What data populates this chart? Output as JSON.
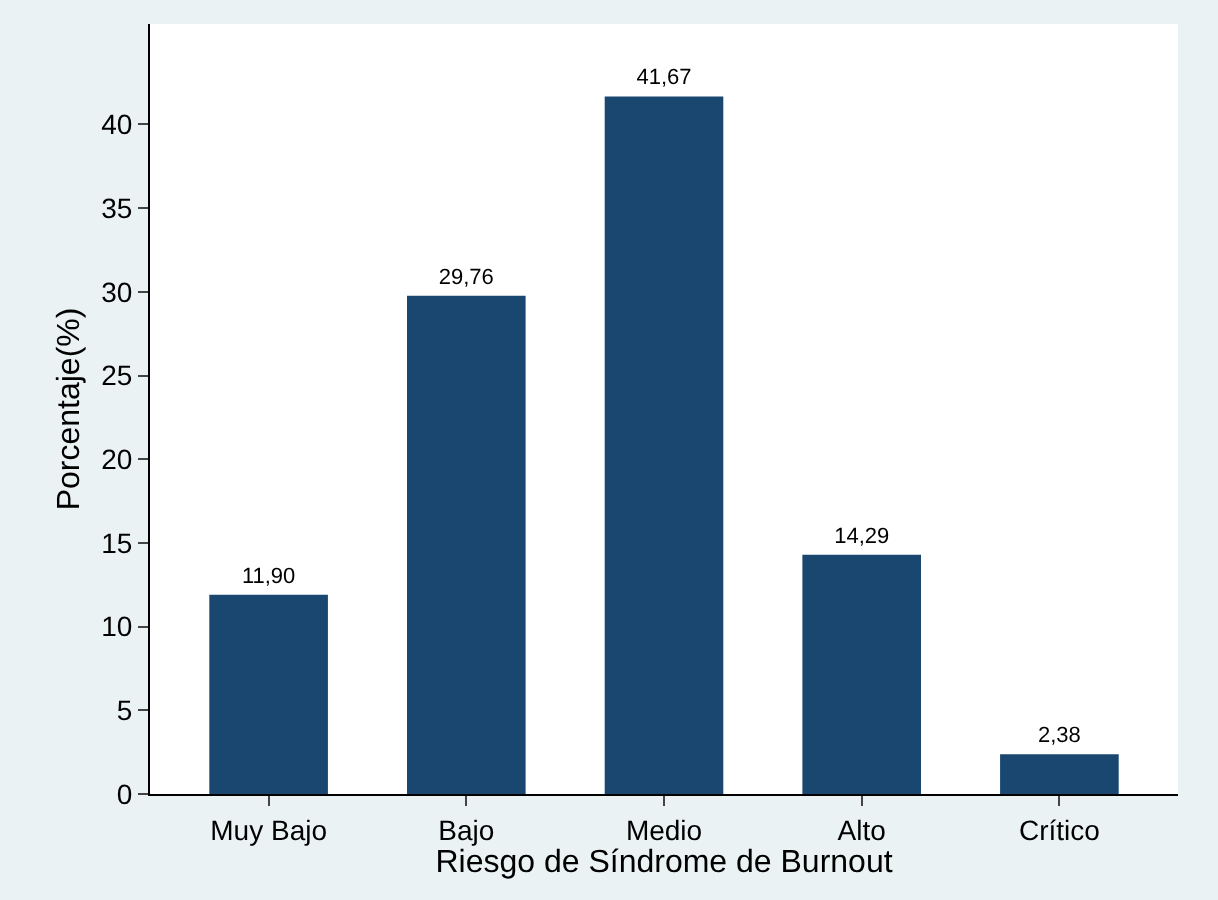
{
  "chart_data": {
    "type": "bar",
    "categories": [
      "Muy Bajo",
      "Bajo",
      "Medio",
      "Alto",
      "Crítico"
    ],
    "values": [
      11.9,
      29.76,
      41.67,
      14.29,
      2.38
    ],
    "value_labels": [
      "11,90",
      "29,76",
      "41,67",
      "14,29",
      "2,38"
    ],
    "color": "#1a476f",
    "xlabel": "Riesgo de Síndrome de Burnout",
    "ylabel": "Porcentaje(%)",
    "ylim": [
      0,
      46
    ],
    "yticks": [
      0,
      5,
      10,
      15,
      20,
      25,
      30,
      35,
      40
    ],
    "legend": false
  }
}
